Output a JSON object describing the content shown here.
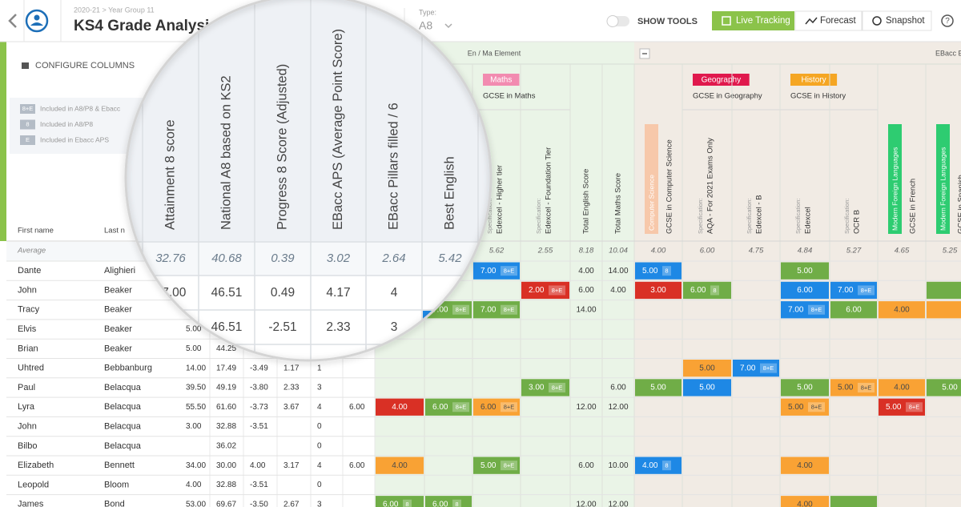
{
  "header": {
    "breadcrumb": "2020-21 > Year Group 11",
    "title": "KS4 Grade Analysis",
    "type_label": "Type:",
    "type_value": "A8",
    "show_tools": "SHOW TOOLS",
    "buttons": [
      "Live Tracking",
      "Forecast",
      "Snapshot"
    ],
    "help": "?"
  },
  "sidebar": {
    "configure": "CONFIGURE COLUMNS",
    "legend": [
      {
        "badge": "8+E",
        "text": "Included in A8/P8 & Ebacc"
      },
      {
        "badge": "8",
        "text": "Included in A8/P8"
      },
      {
        "badge": "E",
        "text": "Included in Ebacc APS"
      }
    ]
  },
  "table": {
    "groups": [
      "En / Ma Element",
      "EBacc El"
    ],
    "subjects": [
      {
        "tag": "Maths",
        "color": "#f28bb0",
        "title": "GCSE in Maths"
      },
      {
        "tag": "Geography",
        "color": "#e0194d",
        "title": "GCSE in Geography"
      },
      {
        "tag": "History",
        "color": "#f5a623",
        "title": "GCSE in History"
      }
    ],
    "name_headers": [
      "First name",
      "Last n"
    ],
    "columns": [
      {
        "label": "Attainment 8 score"
      },
      {
        "label": "National A8 based on KS2"
      },
      {
        "label": "Progress 8 Score (Adjusted)"
      },
      {
        "label": "EBacc APS (Average Point Score)"
      },
      {
        "label": "EBacc Pillars filled / 6"
      },
      {
        "label": "Best English"
      },
      null,
      null,
      {
        "spec": "Specification:",
        "label": "Edexcel - Higher tier"
      },
      {
        "spec": "Specification:",
        "label": "Edexcel - Foundation Tier"
      },
      {
        "label": "Total English Score"
      },
      {
        "label": "Total Maths Score"
      },
      {
        "tag": "Computer Science",
        "tag_color": "#f7c8aa",
        "label": "GCSE in Computer Science"
      },
      {
        "spec": "Specification:",
        "label": "AQA - For 2021 Exams Only"
      },
      {
        "spec": "Specification:",
        "label": "Edexcel - B"
      },
      {
        "spec": "Specification:",
        "label": "Edexcel"
      },
      {
        "spec": "Specification:",
        "label": "OCR B"
      },
      {
        "tag": "Modern Foreign Languages",
        "tag_color": "#2ecc71",
        "label": "GCSE in French"
      },
      {
        "tag": "Modern Foreign Languages",
        "tag_color": "#2ecc71",
        "label": "GCSE in Spanish"
      }
    ],
    "average": {
      "label": "Average",
      "values": [
        "32.76",
        "40.68",
        "0.39",
        "3.02",
        "2.64",
        "5.42",
        null,
        null,
        "5.62",
        "2.55",
        "8.18",
        "10.04",
        "4.00",
        "6.00",
        "4.75",
        "4.84",
        "5.27",
        "4.65",
        "5.25"
      ]
    },
    "rows": [
      {
        "first": "Dante",
        "last": "Alighieri",
        "cells": [
          null,
          null,
          null,
          null,
          null,
          null,
          null,
          null,
          {
            "text": "7.00",
            "badge": "8+E",
            "color": "#1e88e5"
          },
          null,
          "4.00",
          "14.00",
          {
            "text": "5.00",
            "badge": "8",
            "color": "#1e88e5"
          },
          null,
          null,
          {
            "text": "5.00",
            "color": "#70ad47"
          },
          null,
          null,
          null
        ]
      },
      {
        "first": "John",
        "last": "Beaker",
        "cells": [
          "47.00",
          "46.51",
          "0.49",
          "4.17",
          "4",
          null,
          null,
          null,
          null,
          {
            "text": "2.00",
            "badge": "8+E",
            "color": "#d93025"
          },
          "6.00",
          "4.00",
          {
            "text": "3.00",
            "color": "#d93025"
          },
          {
            "text": "6.00",
            "badge": "8",
            "color": "#70ad47"
          },
          null,
          {
            "text": "6.00",
            "color": "#1e88e5"
          },
          {
            "text": "7.00",
            "badge": "8+E",
            "color": "#1e88e5"
          },
          null,
          {
            "color": "#70ad47"
          }
        ]
      },
      {
        "first": "Tracy",
        "last": "Beaker",
        "cells": [
          null,
          null,
          null,
          null,
          null,
          null,
          {
            "color": "#1e88e5"
          },
          {
            "text": "7.00",
            "badge": "8+E",
            "color": "#70ad47"
          },
          {
            "text": "7.00",
            "badge": "8+E",
            "color": "#70ad47"
          },
          null,
          "14.00",
          null,
          null,
          null,
          null,
          {
            "text": "7.00",
            "badge": "8+E",
            "color": "#1e88e5"
          },
          {
            "text": "6.00",
            "color": "#70ad47"
          },
          {
            "text": "4.00",
            "color": "#f9a234"
          },
          {
            "color": "#f9a234"
          }
        ]
      },
      {
        "first": "Elvis",
        "last": "Beaker",
        "cells": [
          "5.00",
          "46.51",
          "-2.51",
          "2.33",
          "3",
          null,
          null,
          null,
          null,
          null,
          null,
          null,
          null,
          null,
          null,
          null,
          null,
          null,
          null
        ]
      },
      {
        "first": "Brian",
        "last": "Beaker",
        "cells": [
          "5.00",
          "44.25",
          null,
          null,
          null,
          null,
          null,
          null,
          null,
          null,
          null,
          null,
          null,
          null,
          null,
          null,
          null,
          null,
          null
        ]
      },
      {
        "first": "Uhtred",
        "last": "Bebbanburg",
        "cells": [
          "14.00",
          "17.49",
          "-3.49",
          "1.17",
          "1",
          null,
          null,
          null,
          null,
          null,
          null,
          null,
          null,
          {
            "text": "5.00",
            "color": "#f9a234"
          },
          {
            "text": "7.00",
            "badge": "8+E",
            "color": "#1e88e5"
          },
          null,
          null,
          null,
          null
        ]
      },
      {
        "first": "Paul",
        "last": "Belacqua",
        "cells": [
          "39.50",
          "49.19",
          "-3.80",
          "2.33",
          "3",
          null,
          null,
          null,
          null,
          {
            "text": "3.00",
            "badge": "8+E",
            "color": "#70ad47"
          },
          null,
          "6.00",
          {
            "text": "5.00",
            "color": "#70ad47"
          },
          {
            "text": "5.00",
            "color": "#1e88e5"
          },
          null,
          {
            "text": "5.00",
            "color": "#70ad47"
          },
          {
            "text": "5.00",
            "badge": "8+E",
            "color": "#f9a234"
          },
          {
            "text": "4.00",
            "color": "#f9a234"
          },
          {
            "text": "5.00",
            "color": "#70ad47"
          }
        ]
      },
      {
        "first": "Lyra",
        "last": "Belacqua",
        "cells": [
          "55.50",
          "61.60",
          "-3.73",
          "3.67",
          "4",
          "6.00",
          {
            "text": "4.00",
            "color": "#d93025"
          },
          {
            "text": "6.00",
            "badge": "8+E",
            "color": "#70ad47"
          },
          {
            "text": "6.00",
            "badge": "8+E",
            "color": "#f9a234"
          },
          null,
          "12.00",
          "12.00",
          null,
          null,
          null,
          {
            "text": "5.00",
            "badge": "8+E",
            "color": "#f9a234"
          },
          null,
          {
            "text": "5.00",
            "badge": "8+E",
            "color": "#d93025"
          },
          null
        ]
      },
      {
        "first": "John",
        "last": "Belacqua",
        "cells": [
          "3.00",
          "32.88",
          "-3.51",
          null,
          "0",
          null,
          null,
          null,
          null,
          null,
          null,
          null,
          null,
          null,
          null,
          null,
          null,
          null,
          null
        ]
      },
      {
        "first": "Bilbo",
        "last": "Belacqua",
        "cells": [
          null,
          "36.02",
          null,
          null,
          "0",
          null,
          null,
          null,
          null,
          null,
          null,
          null,
          null,
          null,
          null,
          null,
          null,
          null,
          null
        ]
      },
      {
        "first": "Elizabeth",
        "last": "Bennett",
        "cells": [
          "34.00",
          "30.00",
          "4.00",
          "3.17",
          "4",
          "6.00",
          {
            "text": "4.00",
            "color": "#f9a234"
          },
          null,
          {
            "text": "5.00",
            "badge": "8+E",
            "color": "#70ad47"
          },
          null,
          "6.00",
          "10.00",
          {
            "text": "4.00",
            "badge": "8",
            "color": "#1e88e5"
          },
          null,
          null,
          {
            "text": "4.00",
            "color": "#f9a234"
          },
          null,
          null,
          null
        ]
      },
      {
        "first": "Leopold",
        "last": "Bloom",
        "cells": [
          "4.00",
          "32.88",
          "-3.51",
          null,
          "0",
          null,
          null,
          null,
          null,
          null,
          null,
          null,
          null,
          null,
          null,
          null,
          null,
          null,
          null
        ]
      },
      {
        "first": "James",
        "last": "Bond",
        "cells": [
          "53.00",
          "69.67",
          "-3.50",
          "2.67",
          "3",
          null,
          {
            "text": "6.00",
            "badge": "8",
            "color": "#70ad47"
          },
          {
            "text": "6.00",
            "badge": "8",
            "color": "#70ad47"
          },
          null,
          null,
          "12.00",
          "12.00",
          null,
          null,
          null,
          {
            "text": "4.00",
            "color": "#f9a234"
          },
          {
            "color": "#70ad47"
          },
          null,
          null
        ]
      }
    ]
  }
}
